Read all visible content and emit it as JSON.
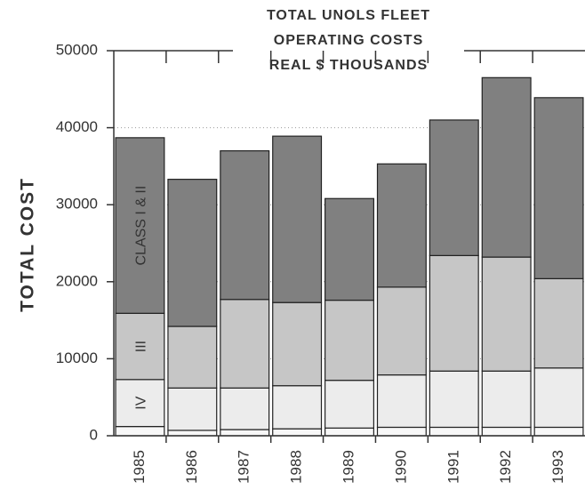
{
  "chart_data": {
    "type": "stacked_bar",
    "title": [
      "TOTAL UNOLS FLEET",
      "OPERATING COSTS",
      "REAL $ THOUSANDS"
    ],
    "y_label": "TOTAL COST",
    "categories": [
      "1985",
      "1986",
      "1987",
      "1988",
      "1989",
      "1990",
      "1991",
      "1992",
      "1993"
    ],
    "series": [
      {
        "color": "#f7f7f7",
        "values": [
          1200,
          700,
          800,
          900,
          1000,
          1100,
          1100,
          1100,
          1100
        ]
      },
      {
        "name": "IV",
        "color": "#ececec",
        "values": [
          6100,
          5500,
          5400,
          5600,
          6200,
          6800,
          7300,
          7300,
          7700
        ]
      },
      {
        "name": "III",
        "color": "#c6c6c6",
        "values": [
          8600,
          8000,
          11500,
          10800,
          10400,
          11400,
          15000,
          14800,
          11600
        ]
      },
      {
        "name": "CLASS I & II",
        "color": "#808080",
        "values": [
          22800,
          19100,
          19300,
          21600,
          13200,
          16000,
          17600,
          23300,
          23500
        ]
      }
    ],
    "ylim": [
      0,
      50000
    ],
    "yticks": [
      0,
      10000,
      20000,
      30000,
      40000,
      50000
    ],
    "grid": true
  }
}
